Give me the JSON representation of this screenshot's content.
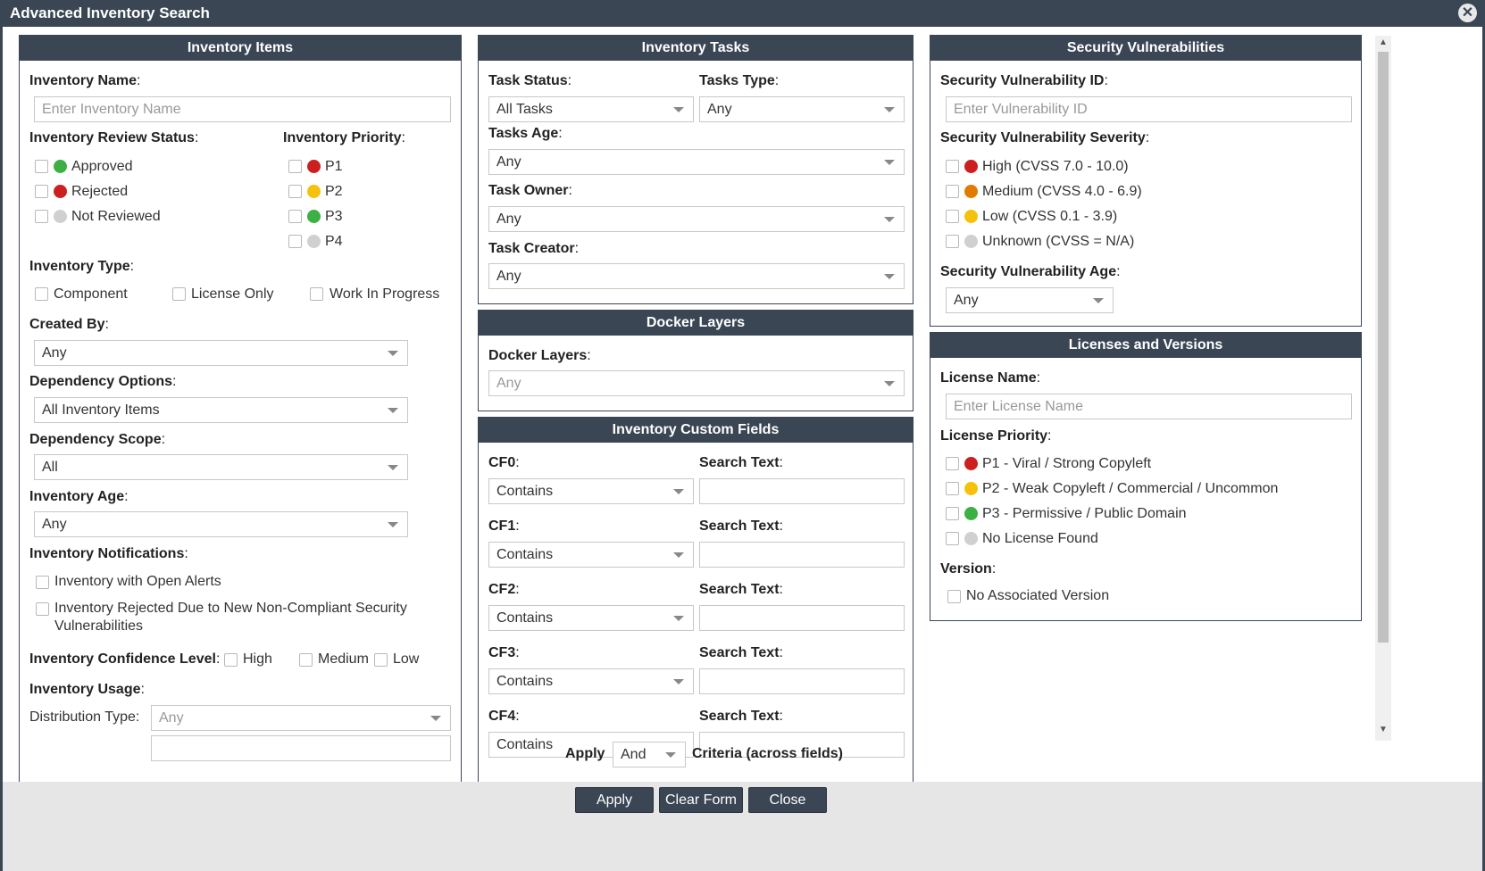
{
  "window": {
    "title": "Advanced Inventory Search"
  },
  "colors": {
    "green": "#3cb043",
    "red": "#cc1f1f",
    "yellow": "#f4c20d",
    "orange": "#e07b00",
    "gray": "#d0d0d0",
    "header": "#3a4654"
  },
  "items": {
    "header": "Inventory Items",
    "name_label": "Inventory Name",
    "name_placeholder": "Enter Inventory Name",
    "review_label": "Inventory Review Status",
    "review": [
      "Approved",
      "Rejected",
      "Not Reviewed"
    ],
    "priority_label": "Inventory Priority",
    "priority": [
      "P1",
      "P2",
      "P3",
      "P4"
    ],
    "type_label": "Inventory Type",
    "types": [
      "Component",
      "License Only",
      "Work In Progress"
    ],
    "created_label": "Created By",
    "created_value": "Any",
    "dep_options_label": "Dependency Options",
    "dep_options_value": "All Inventory Items",
    "dep_scope_label": "Dependency Scope",
    "dep_scope_value": "All",
    "age_label": "Inventory Age",
    "age_value": "Any",
    "notif_label": "Inventory Notifications",
    "notif_open": "Inventory with Open Alerts",
    "notif_rejected_1": "Inventory Rejected Due to New Non-Compliant Security",
    "notif_rejected_2": "Vulnerabilities",
    "conf_label": "Inventory Confidence Level",
    "conf": [
      "High",
      "Medium",
      "Low"
    ],
    "usage_label": "Inventory Usage",
    "dist_label": "Distribution Type:",
    "dist_value": "Any"
  },
  "tasks": {
    "header": "Inventory Tasks",
    "status_label": "Task Status",
    "status_value": "All Tasks",
    "type_label": "Tasks Type",
    "type_value": "Any",
    "age_label": "Tasks Age",
    "age_value": "Any",
    "owner_label": "Task Owner",
    "owner_value": "Any",
    "creator_label": "Task Creator",
    "creator_value": "Any"
  },
  "docker": {
    "header": "Docker Layers",
    "label": "Docker Layers",
    "value": "Any"
  },
  "custom": {
    "header": "Inventory Custom Fields",
    "search_label": "Search Text",
    "fields": [
      {
        "label": "CF0",
        "op": "Contains"
      },
      {
        "label": "CF1",
        "op": "Contains"
      },
      {
        "label": "CF2",
        "op": "Contains"
      },
      {
        "label": "CF3",
        "op": "Contains"
      },
      {
        "label": "CF4",
        "op": "Contains"
      }
    ]
  },
  "security": {
    "header": "Security Vulnerabilities",
    "id_label": "Security Vulnerability ID",
    "id_placeholder": "Enter Vulnerability ID",
    "severity_label": "Security Vulnerability Severity",
    "severity": [
      "High (CVSS 7.0 - 10.0)",
      "Medium (CVSS 4.0 - 6.9)",
      "Low (CVSS 0.1 - 3.9)",
      "Unknown (CVSS = N/A)"
    ],
    "age_label": "Security Vulnerability Age",
    "age_value": "Any"
  },
  "licenses": {
    "header": "Licenses and Versions",
    "name_label": "License Name",
    "name_placeholder": "Enter License Name",
    "priority_label": "License Priority",
    "priority": [
      "P1 - Viral / Strong Copyleft",
      "P2 - Weak Copyleft / Commercial / Uncommon",
      "P3 - Permissive / Public Domain",
      "No License Found"
    ],
    "version_label": "Version",
    "no_version": "No Associated Version"
  },
  "criteria": {
    "apply": "Apply",
    "value": "And",
    "suffix": "Criteria (across fields)"
  },
  "footer": {
    "apply": "Apply",
    "clear": "Clear Form",
    "close": "Close"
  }
}
